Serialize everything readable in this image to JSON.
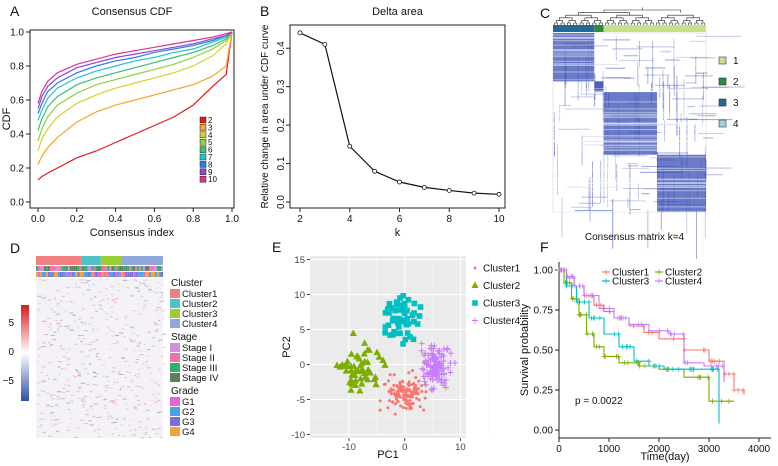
{
  "panels": {
    "A": "A",
    "B": "B",
    "C": "C",
    "D": "D",
    "E": "E",
    "F": "F"
  },
  "chart_data": [
    {
      "id": "A",
      "type": "line",
      "title": "Consensus CDF",
      "xlabel": "Consensus index",
      "ylabel": "CDF",
      "xlim": [
        0,
        1
      ],
      "ylim": [
        0,
        1
      ],
      "xticks": [
        "0.0",
        "0.2",
        "0.4",
        "0.6",
        "0.8",
        "1.0"
      ],
      "yticks": [
        "0.0",
        "0.2",
        "0.4",
        "0.6",
        "0.8",
        "1.0"
      ],
      "x": [
        0.0,
        0.02,
        0.05,
        0.1,
        0.2,
        0.3,
        0.4,
        0.5,
        0.6,
        0.7,
        0.8,
        0.9,
        0.97,
        1.0
      ],
      "series": [
        {
          "name": "2",
          "color": "#e41a1c",
          "values": [
            0.13,
            0.15,
            0.17,
            0.2,
            0.26,
            0.3,
            0.35,
            0.4,
            0.45,
            0.5,
            0.57,
            0.68,
            0.75,
            1.0
          ]
        },
        {
          "name": "3",
          "color": "#f5a623",
          "values": [
            0.22,
            0.27,
            0.32,
            0.38,
            0.47,
            0.53,
            0.57,
            0.6,
            0.63,
            0.66,
            0.69,
            0.74,
            0.8,
            1.0
          ]
        },
        {
          "name": "4",
          "color": "#d4d22a",
          "values": [
            0.3,
            0.37,
            0.43,
            0.5,
            0.58,
            0.63,
            0.67,
            0.7,
            0.73,
            0.76,
            0.8,
            0.86,
            0.93,
            1.0
          ]
        },
        {
          "name": "5",
          "color": "#8fd13f",
          "values": [
            0.36,
            0.43,
            0.5,
            0.57,
            0.64,
            0.69,
            0.72,
            0.75,
            0.78,
            0.81,
            0.85,
            0.9,
            0.95,
            1.0
          ]
        },
        {
          "name": "6",
          "color": "#35c46b",
          "values": [
            0.42,
            0.49,
            0.56,
            0.62,
            0.69,
            0.73,
            0.76,
            0.79,
            0.82,
            0.85,
            0.88,
            0.92,
            0.96,
            1.0
          ]
        },
        {
          "name": "7",
          "color": "#26c6c6",
          "values": [
            0.48,
            0.54,
            0.61,
            0.67,
            0.73,
            0.77,
            0.8,
            0.83,
            0.85,
            0.88,
            0.9,
            0.94,
            0.97,
            1.0
          ]
        },
        {
          "name": "8",
          "color": "#2f7de1",
          "values": [
            0.52,
            0.58,
            0.65,
            0.7,
            0.76,
            0.8,
            0.83,
            0.85,
            0.88,
            0.9,
            0.92,
            0.95,
            0.98,
            1.0
          ]
        },
        {
          "name": "9",
          "color": "#8a44d8",
          "values": [
            0.55,
            0.62,
            0.68,
            0.73,
            0.79,
            0.82,
            0.85,
            0.87,
            0.89,
            0.91,
            0.93,
            0.96,
            0.98,
            1.0
          ]
        },
        {
          "name": "10",
          "color": "#e0338c",
          "values": [
            0.58,
            0.65,
            0.71,
            0.76,
            0.81,
            0.84,
            0.87,
            0.89,
            0.91,
            0.93,
            0.95,
            0.97,
            0.99,
            1.0
          ]
        }
      ],
      "legend": "bottom-right"
    },
    {
      "id": "B",
      "type": "line",
      "title": "Delta area",
      "xlabel": "k",
      "ylabel": "Relative change in area under CDF curve",
      "xlim": [
        2,
        10
      ],
      "ylim": [
        0,
        0.45
      ],
      "xticks": [
        "2",
        "4",
        "6",
        "8",
        "10"
      ],
      "yticks": [
        "0.0",
        "0.1",
        "0.2",
        "0.3",
        "0.4"
      ],
      "x": [
        2,
        3,
        4,
        5,
        6,
        7,
        8,
        9,
        10
      ],
      "values": [
        0.44,
        0.41,
        0.145,
        0.08,
        0.052,
        0.038,
        0.03,
        0.023,
        0.02
      ]
    },
    {
      "id": "C",
      "type": "heatmap",
      "title": "Consensus matrix k=4",
      "clusters": [
        {
          "name": "1",
          "color": "#c6e08a",
          "size": 0.34
        },
        {
          "name": "2",
          "color": "#2e8b3e",
          "size": 0.12
        },
        {
          "name": "3",
          "color": "#236a95",
          "size": 0.42
        },
        {
          "name": "4",
          "color": "#9fd3e4",
          "size": 0.12
        }
      ],
      "order": [
        "3",
        "2",
        "1",
        "1"
      ],
      "legend": "right"
    },
    {
      "id": "D",
      "type": "heatmap",
      "scale_ticks": [
        "5",
        "0",
        "−5"
      ],
      "annotation_rows": [
        "Cluster",
        "Stage",
        "Grade"
      ],
      "legend_groups": [
        {
          "title": "Cluster",
          "items": [
            {
              "label": "Cluster1",
              "color": "#f08080"
            },
            {
              "label": "Cluster2",
              "color": "#4fc1c7"
            },
            {
              "label": "Cluster3",
              "color": "#9acd32"
            },
            {
              "label": "Cluster4",
              "color": "#8fa8dc"
            }
          ]
        },
        {
          "title": "Stage",
          "items": [
            {
              "label": "Stage I",
              "color": "#d38fd8"
            },
            {
              "label": "Stage II",
              "color": "#ee73a8"
            },
            {
              "label": "Stage III",
              "color": "#2fae6e"
            },
            {
              "label": "Stage IV",
              "color": "#5c7f5c"
            }
          ]
        },
        {
          "title": "Grade",
          "items": [
            {
              "label": "G1",
              "color": "#e366d8"
            },
            {
              "label": "G2",
              "color": "#4aa0ea"
            },
            {
              "label": "G3",
              "color": "#7c6fd8"
            },
            {
              "label": "G4",
              "color": "#f2a23b"
            }
          ]
        }
      ],
      "cluster_bar": [
        {
          "color": "#f08080",
          "frac": 0.36
        },
        {
          "color": "#4fc1c7",
          "frac": 0.15
        },
        {
          "color": "#9acd32",
          "frac": 0.16
        },
        {
          "color": "#8fa8dc",
          "frac": 0.33
        }
      ]
    },
    {
      "id": "E",
      "type": "scatter",
      "xlabel": "PC1",
      "ylabel": "PC2",
      "xlim": [
        -17,
        11
      ],
      "ylim": [
        -10.5,
        15.5
      ],
      "xticks": [
        -10,
        0,
        10
      ],
      "yticks": [
        -10,
        -5,
        0,
        5,
        10,
        15
      ],
      "series": [
        {
          "name": "Cluster1",
          "color": "#f8766d",
          "shape": "dot",
          "center": [
            0,
            -4
          ],
          "spread": [
            3.5,
            2.8
          ],
          "count": 130
        },
        {
          "name": "Cluster2",
          "color": "#7cae00",
          "shape": "triangle",
          "center": [
            -8,
            0
          ],
          "spread": [
            3.5,
            3.2
          ],
          "count": 55
        },
        {
          "name": "Cluster3",
          "color": "#00bfc4",
          "shape": "square",
          "center": [
            -1,
            6.5
          ],
          "spread": [
            3.2,
            3.0
          ],
          "count": 60
        },
        {
          "name": "Cluster4",
          "color": "#c77cff",
          "shape": "cross",
          "center": [
            5.5,
            0
          ],
          "spread": [
            2.5,
            3.0
          ],
          "count": 110
        }
      ],
      "legend": "right"
    },
    {
      "id": "F",
      "type": "line",
      "subtype": "kaplan-meier",
      "xlabel": "Time(day)",
      "ylabel": "Survival probability",
      "xlim": [
        0,
        4000
      ],
      "ylim": [
        0,
        1
      ],
      "xticks": [
        "0",
        "1000",
        "2000",
        "3000",
        "4000"
      ],
      "yticks": [
        "0.00",
        "0.25",
        "0.50",
        "0.75",
        "1.00"
      ],
      "annotation": "p = 0.0022",
      "series": [
        {
          "name": "Cluster1",
          "color": "#f8766d",
          "x": [
            0,
            150,
            300,
            500,
            700,
            900,
            1100,
            1400,
            1700,
            2000,
            2500,
            3000,
            3300,
            3500,
            3700
          ],
          "y": [
            1.0,
            0.95,
            0.9,
            0.84,
            0.78,
            0.74,
            0.7,
            0.65,
            0.61,
            0.57,
            0.5,
            0.43,
            0.35,
            0.25,
            0.22
          ]
        },
        {
          "name": "Cluster2",
          "color": "#7cae00",
          "x": [
            0,
            100,
            250,
            400,
            550,
            700,
            900,
            1200,
            1600,
            2000,
            2500,
            3000,
            3500
          ],
          "y": [
            1.0,
            0.92,
            0.82,
            0.72,
            0.6,
            0.52,
            0.46,
            0.42,
            0.4,
            0.38,
            0.33,
            0.18,
            0.18
          ]
        },
        {
          "name": "Cluster3",
          "color": "#00bfc4",
          "x": [
            0,
            150,
            350,
            600,
            900,
            1200,
            1500,
            1800,
            2100,
            2500,
            3000,
            3200
          ],
          "y": [
            1.0,
            0.9,
            0.8,
            0.7,
            0.6,
            0.52,
            0.43,
            0.4,
            0.38,
            0.38,
            0.38,
            0.04
          ]
        },
        {
          "name": "Cluster4",
          "color": "#c77cff",
          "x": [
            0,
            150,
            300,
            500,
            800,
            1100,
            1400,
            1800,
            2200,
            2500,
            2900,
            3300
          ],
          "y": [
            1.0,
            0.96,
            0.9,
            0.84,
            0.76,
            0.7,
            0.66,
            0.62,
            0.6,
            0.42,
            0.4,
            0.3
          ]
        }
      ],
      "legend": "top-right"
    }
  ]
}
